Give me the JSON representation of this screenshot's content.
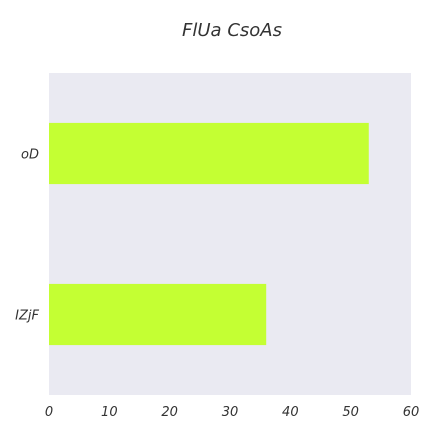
{
  "chart_data": {
    "type": "bar",
    "orientation": "horizontal",
    "title": "FlUa  CsoAs",
    "categories": [
      "oD",
      "IZjF"
    ],
    "values": [
      53,
      36
    ],
    "xlim": [
      0,
      60
    ],
    "xticks": [
      "0",
      "10",
      "20",
      "30",
      "40",
      "50",
      "60"
    ],
    "xlabel": "",
    "ylabel": "",
    "grid": false,
    "colors": {
      "bar": "#c4ff33",
      "plot_background": "#eaeaf2",
      "text": "#333333"
    }
  }
}
